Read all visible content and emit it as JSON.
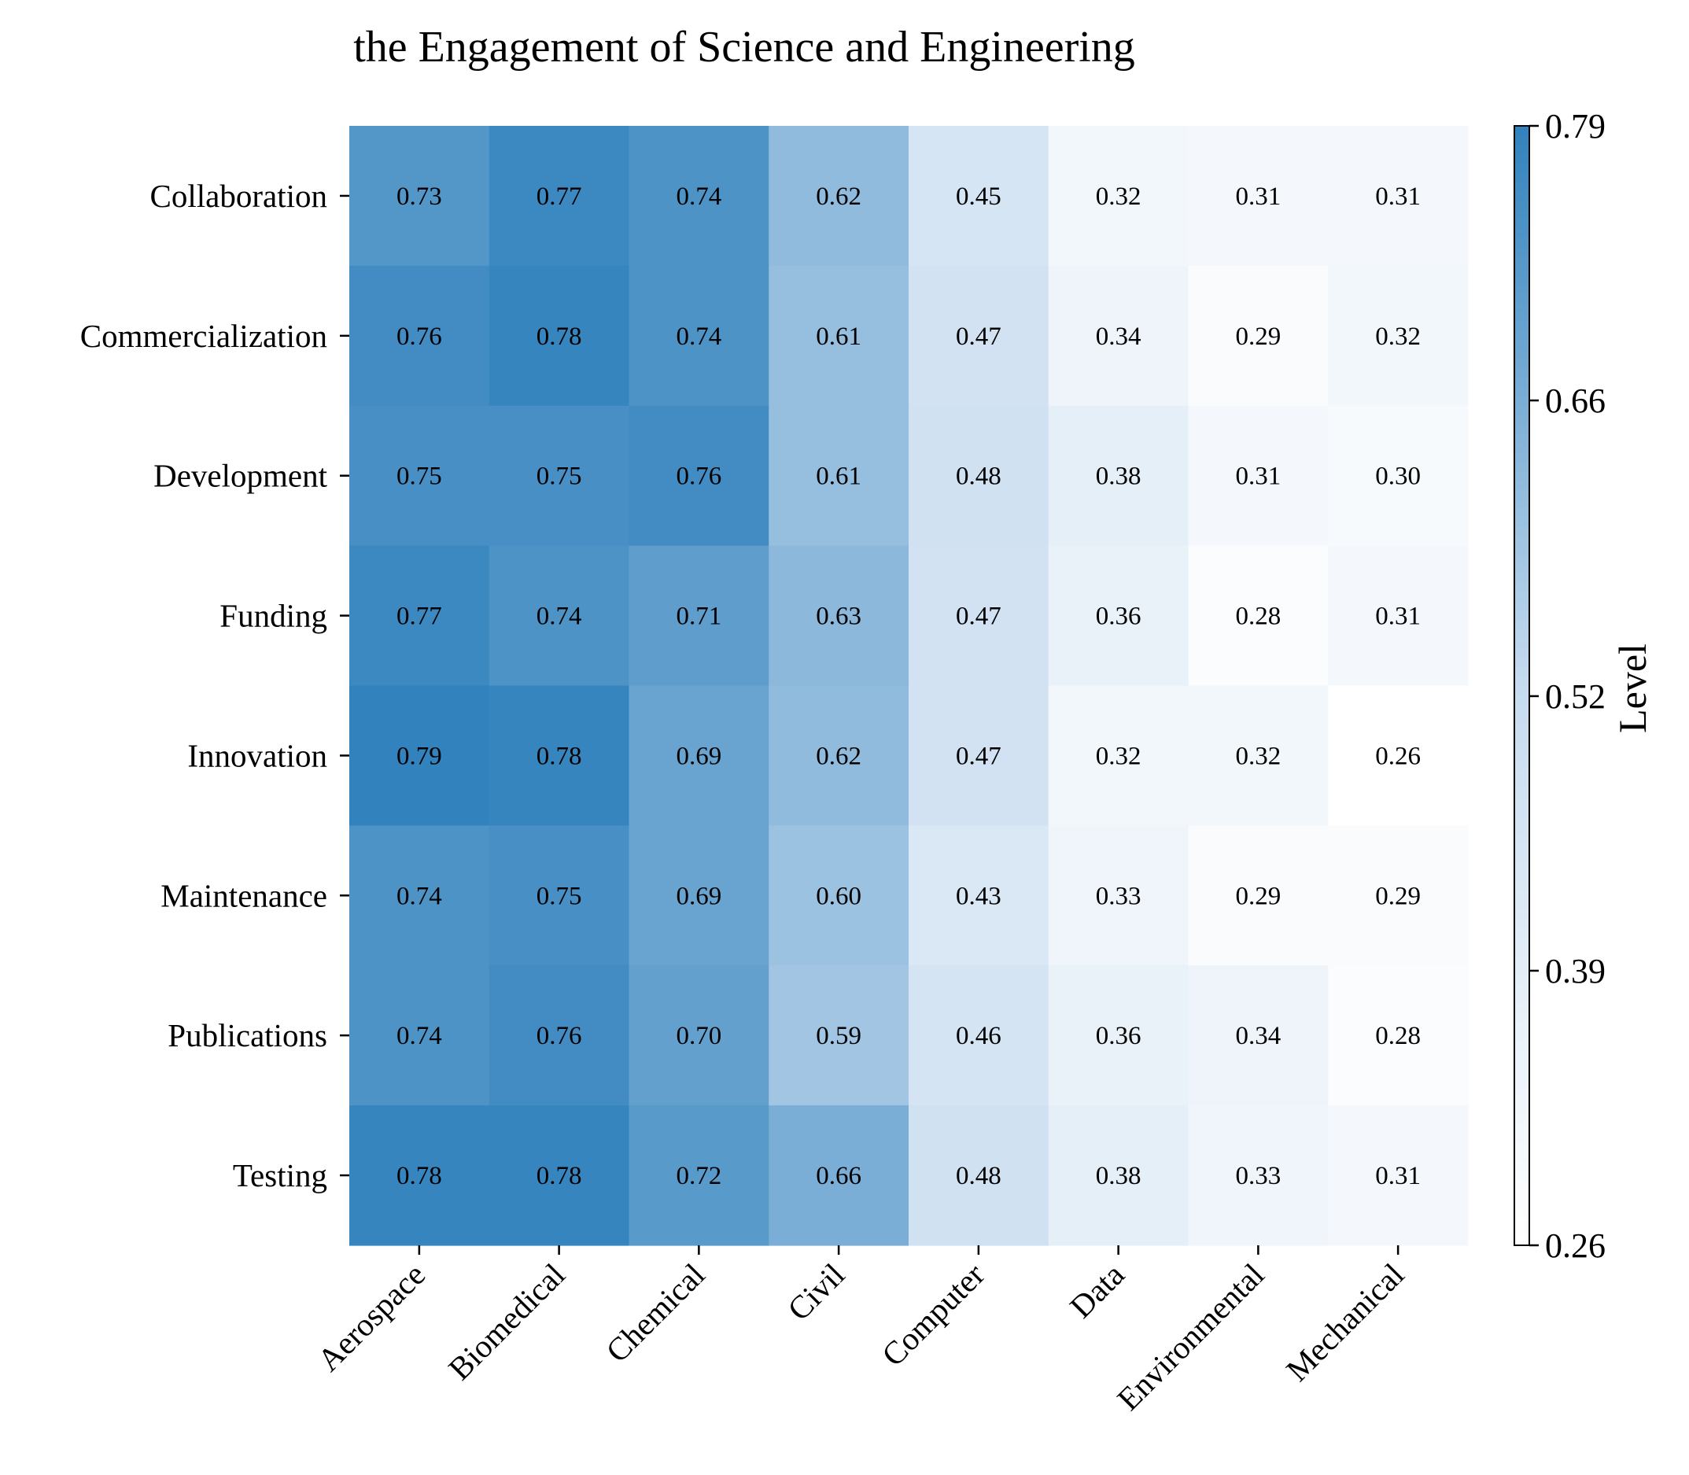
{
  "chart_data": {
    "type": "heatmap",
    "title": "the Engagement of Science and Engineering",
    "x_categories": [
      "Aerospace",
      "Biomedical",
      "Chemical",
      "Civil",
      "Computer",
      "Data",
      "Environmental",
      "Mechanical"
    ],
    "y_categories": [
      "Collaboration",
      "Commercialization",
      "Development",
      "Funding",
      "Innovation",
      "Maintenance",
      "Publications",
      "Testing"
    ],
    "values": [
      [
        0.73,
        0.77,
        0.74,
        0.62,
        0.45,
        0.32,
        0.31,
        0.31
      ],
      [
        0.76,
        0.78,
        0.74,
        0.61,
        0.47,
        0.34,
        0.29,
        0.32
      ],
      [
        0.75,
        0.75,
        0.76,
        0.61,
        0.48,
        0.38,
        0.31,
        0.3
      ],
      [
        0.77,
        0.74,
        0.71,
        0.63,
        0.47,
        0.36,
        0.28,
        0.31
      ],
      [
        0.79,
        0.78,
        0.69,
        0.62,
        0.47,
        0.32,
        0.32,
        0.26
      ],
      [
        0.74,
        0.75,
        0.69,
        0.6,
        0.43,
        0.33,
        0.29,
        0.29
      ],
      [
        0.74,
        0.76,
        0.7,
        0.59,
        0.46,
        0.36,
        0.34,
        0.28
      ],
      [
        0.78,
        0.78,
        0.72,
        0.66,
        0.48,
        0.38,
        0.33,
        0.31
      ]
    ],
    "value_labels": [
      [
        "0.73",
        "0.77",
        "0.74",
        "0.62",
        "0.45",
        "0.32",
        "0.31",
        "0.31"
      ],
      [
        "0.76",
        "0.78",
        "0.74",
        "0.61",
        "0.47",
        "0.34",
        "0.29",
        "0.32"
      ],
      [
        "0.75",
        "0.75",
        "0.76",
        "0.61",
        "0.48",
        "0.38",
        "0.31",
        "0.30"
      ],
      [
        "0.77",
        "0.74",
        "0.71",
        "0.63",
        "0.47",
        "0.36",
        "0.28",
        "0.31"
      ],
      [
        "0.79",
        "0.78",
        "0.69",
        "0.62",
        "0.47",
        "0.32",
        "0.32",
        "0.26"
      ],
      [
        "0.74",
        "0.75",
        "0.69",
        "0.60",
        "0.43",
        "0.33",
        "0.29",
        "0.29"
      ],
      [
        "0.74",
        "0.76",
        "0.70",
        "0.59",
        "0.46",
        "0.36",
        "0.34",
        "0.28"
      ],
      [
        "0.78",
        "0.78",
        "0.72",
        "0.66",
        "0.48",
        "0.38",
        "0.33",
        "0.31"
      ]
    ],
    "colorbar": {
      "label": "Level",
      "min": 0.26,
      "max": 0.79,
      "ticks": [
        0.26,
        0.39,
        0.52,
        0.66,
        0.79
      ],
      "tick_labels": [
        "0.26",
        "0.39",
        "0.52",
        "0.66",
        "0.79"
      ],
      "color_low": "#ffffff",
      "color_high": "#3182bd"
    },
    "grid": false,
    "legend": "colorbar-right"
  }
}
